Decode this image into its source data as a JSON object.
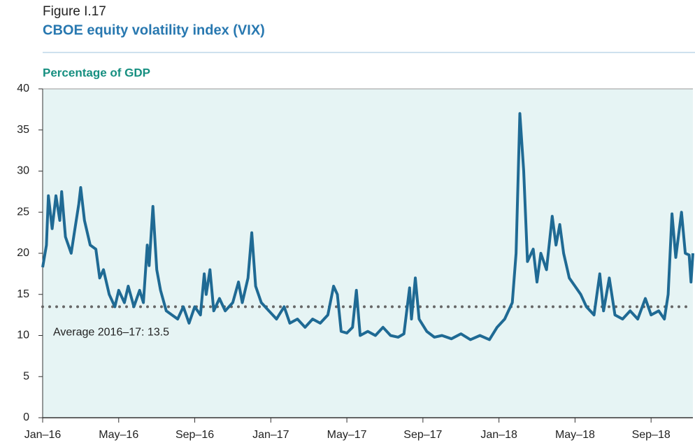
{
  "chart_data": {
    "type": "line",
    "figure_label": "Figure I.17",
    "title": "CBOE equity volatility index (VIX)",
    "subtitle": "Percentage of GDP",
    "x": [
      0,
      0.2,
      0.3,
      0.5,
      0.7,
      0.9,
      1.0,
      1.2,
      1.5,
      1.7,
      1.9,
      2.0,
      2.2,
      2.5,
      2.8,
      3.0,
      3.2,
      3.5,
      3.8,
      4.0,
      4.3,
      4.5,
      4.8,
      5.1,
      5.3,
      5.5,
      5.6,
      5.8,
      6.0,
      6.2,
      6.5,
      6.8,
      7.1,
      7.4,
      7.7,
      8.0,
      8.3,
      8.5,
      8.6,
      8.8,
      9.0,
      9.3,
      9.6,
      10.0,
      10.3,
      10.5,
      10.8,
      11.0,
      11.2,
      11.5,
      11.9,
      12.3,
      12.7,
      13.0,
      13.4,
      13.8,
      14.2,
      14.6,
      15.0,
      15.3,
      15.5,
      15.7,
      16.0,
      16.3,
      16.5,
      16.7,
      17.1,
      17.5,
      17.9,
      18.3,
      18.7,
      19.0,
      19.3,
      19.4,
      19.6,
      19.8,
      20.2,
      20.6,
      21.0,
      21.5,
      22.0,
      22.5,
      23.0,
      23.5,
      23.9,
      24.3,
      24.7,
      24.9,
      25.1,
      25.3,
      25.5,
      25.8,
      26.0,
      26.2,
      26.5,
      26.8,
      27.0,
      27.2,
      27.4,
      27.7,
      28.0,
      28.3,
      28.6,
      29.0,
      29.3,
      29.5,
      29.8,
      30.1,
      30.5,
      30.9,
      31.3,
      31.7,
      32.0,
      32.4,
      32.7,
      32.9,
      33.1,
      33.3,
      33.6,
      33.8,
      34.0,
      34.1,
      34.2
    ],
    "series": [
      {
        "name": "VIX",
        "color": "#1f6a94",
        "values": [
          18.3,
          21,
          27,
          23,
          27,
          24,
          27.5,
          22,
          20,
          23,
          26,
          28,
          24,
          21,
          20.5,
          17,
          18,
          15,
          13.5,
          15.5,
          14,
          16,
          13.5,
          15.5,
          14,
          21,
          18.5,
          25.7,
          18,
          15.5,
          13,
          12.5,
          12,
          13.5,
          11.5,
          13.5,
          12.5,
          17.5,
          15,
          18,
          13,
          14.5,
          13,
          14,
          16.5,
          14,
          17,
          22.5,
          16,
          14,
          13,
          12,
          13.5,
          11.5,
          12,
          11,
          12,
          11.5,
          12.5,
          16,
          15,
          10.5,
          10.3,
          11,
          15.5,
          10,
          10.5,
          10,
          11,
          10,
          9.8,
          10.2,
          15.8,
          12,
          17,
          12,
          10.5,
          9.8,
          10,
          9.6,
          10.2,
          9.5,
          10,
          9.5,
          11,
          12,
          14,
          20,
          37,
          30,
          19,
          20.5,
          16.5,
          20,
          18,
          24.5,
          21,
          23.5,
          20,
          17,
          16,
          15,
          13.5,
          12.5,
          17.5,
          13,
          17,
          12.5,
          12,
          13,
          12,
          14.5,
          12.5,
          13,
          12,
          15,
          24.8,
          19.5,
          25,
          20,
          19.8,
          16.5,
          20
        ]
      }
    ],
    "average": {
      "value": 13.5,
      "label": "Average 2016–17: 13.5"
    },
    "xlim": [
      0,
      34.2
    ],
    "xticks": [
      {
        "value": 0,
        "label": "Jan–16"
      },
      {
        "value": 4,
        "label": "May–16"
      },
      {
        "value": 8,
        "label": "Sep–16"
      },
      {
        "value": 12,
        "label": "Jan–17"
      },
      {
        "value": 16,
        "label": "May–17"
      },
      {
        "value": 20,
        "label": "Sep–17"
      },
      {
        "value": 24,
        "label": "Jan–18"
      },
      {
        "value": 28,
        "label": "May–18"
      },
      {
        "value": 32,
        "label": "Sep–18"
      }
    ],
    "ylim": [
      0,
      40
    ],
    "yticks": [
      0,
      5,
      10,
      15,
      20,
      25,
      30,
      35,
      40
    ],
    "background": "#e6f4f4"
  }
}
